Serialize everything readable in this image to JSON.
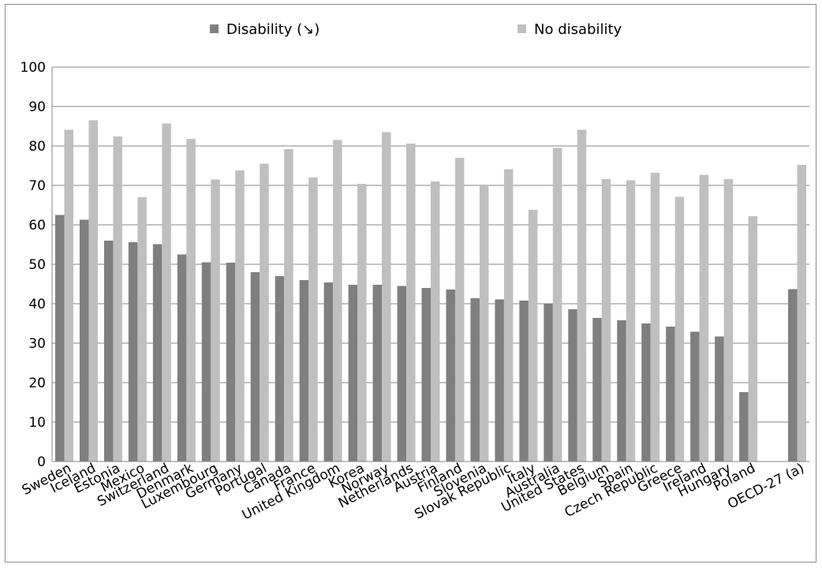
{
  "chart_data": {
    "type": "bar",
    "categories": [
      "Sweden",
      "Iceland",
      "Estonia",
      "Mexico",
      "Switzerland",
      "Denmark",
      "Luxembourg",
      "Germany",
      "Portugal",
      "Canada",
      "France",
      "United Kingdom",
      "Korea",
      "Norway",
      "Netherlands",
      "Austria",
      "Finland",
      "Slovenia",
      "Slovak Republic",
      "Italy",
      "Australia",
      "United States",
      "Belgium",
      "Spain",
      "Czech Republic",
      "Greece",
      "Ireland",
      "Hungary",
      "Poland",
      "",
      "OECD-27 (a)"
    ],
    "series": [
      {
        "name": "Disability (↘)",
        "color": "#7f7f7f",
        "values": [
          62.5,
          61.3,
          56.0,
          55.6,
          55.1,
          52.5,
          50.5,
          50.4,
          48.0,
          47.0,
          46.0,
          45.4,
          44.8,
          44.8,
          44.5,
          44.0,
          43.6,
          41.4,
          41.1,
          40.8,
          39.9,
          38.6,
          36.4,
          35.8,
          35.0,
          34.2,
          32.9,
          31.7,
          17.6,
          null,
          43.7
        ]
      },
      {
        "name": "No disability",
        "color": "#bfbfbf",
        "values": [
          84.1,
          86.5,
          82.4,
          67.0,
          85.7,
          81.8,
          71.5,
          73.8,
          75.5,
          79.2,
          72.0,
          81.5,
          70.4,
          83.5,
          80.6,
          71.0,
          77.0,
          69.8,
          74.1,
          63.8,
          79.5,
          84.1,
          71.6,
          71.3,
          73.2,
          67.1,
          72.7,
          71.6,
          62.2,
          null,
          75.2
        ]
      }
    ],
    "xlabel": "",
    "ylabel": "",
    "ylim": [
      0,
      100
    ],
    "yticks": [
      0,
      10,
      20,
      30,
      40,
      50,
      60,
      70,
      80,
      90,
      100
    ],
    "grid": true,
    "legend": "top-center"
  }
}
